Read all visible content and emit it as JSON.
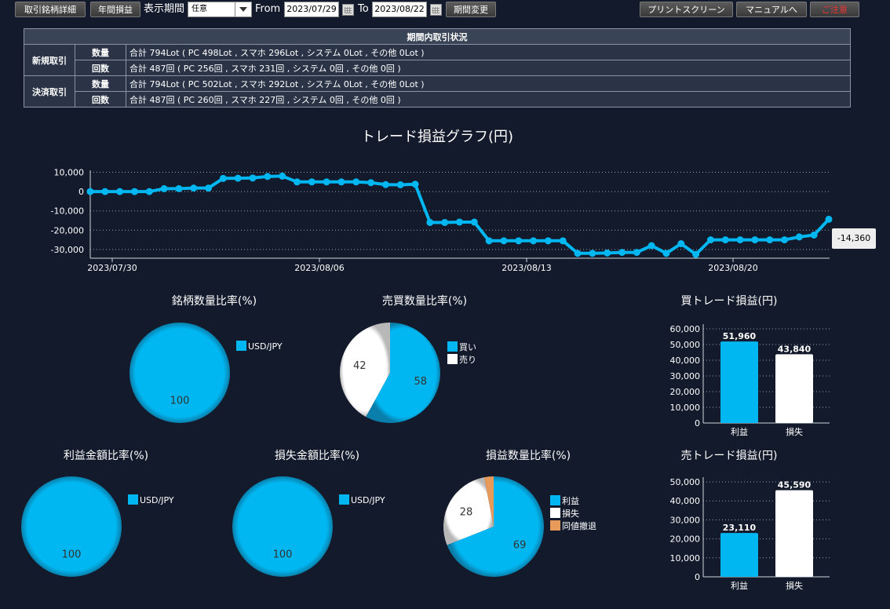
{
  "toolbar": {
    "detail_btn": "取引銘柄詳細",
    "annual_btn": "年間損益",
    "period_label": "表示期間",
    "period_value": "任意",
    "from_label": "From",
    "from_date": "2023/07/29",
    "to_label": "To",
    "to_date": "2023/08/22",
    "change_btn": "期間変更",
    "print_btn": "プリントスクリーン",
    "manual_btn": "マニュアルへ",
    "close_btn": "ご注意"
  },
  "summary": {
    "title": "期間内取引状況",
    "new_label": "新規取引",
    "settle_label": "決済取引",
    "qty_label": "数量",
    "count_label": "回数",
    "new_qty": "合計 794Lot ( PC 498Lot , スマホ 296Lot , システム 0Lot , その他 0Lot )",
    "new_count": "合計 487回 ( PC 256回 , スマホ 231回 , システム 0回 , その他 0回 )",
    "settle_qty": "合計 794Lot ( PC 502Lot , スマホ 292Lot , システム 0Lot , その他 0Lot )",
    "settle_count": "合計 487回 ( PC 260回 , スマホ 227回 , システム 0回 , その他 0回 )"
  },
  "tooltip": "-14,360",
  "colors": {
    "blue": "#00b7f1",
    "white": "#ffffff",
    "orange": "#e89a5a",
    "bg": "#121a2b"
  },
  "chart_data": [
    {
      "type": "line",
      "title": "トレード損益グラフ(円)",
      "yticks": [
        "10,000",
        "0",
        "-10,000",
        "-20,000",
        "-30,000"
      ],
      "ytick_values": [
        10000,
        0,
        -10000,
        -20000,
        -30000
      ],
      "xticks": [
        "2023/07/30",
        "2023/08/06",
        "2023/08/13",
        "2023/08/20"
      ],
      "ylim": [
        -34500,
        11000
      ],
      "grid": true,
      "values": [
        0,
        0,
        0,
        0,
        0,
        1500,
        1500,
        1800,
        1800,
        6800,
        6900,
        7000,
        7800,
        8000,
        5000,
        5000,
        5000,
        5000,
        5000,
        4600,
        3600,
        3500,
        3800,
        -16000,
        -16000,
        -15800,
        -15800,
        -25500,
        -25500,
        -25500,
        -25500,
        -25500,
        -25500,
        -32000,
        -32000,
        -31800,
        -31500,
        -31500,
        -28000,
        -32000,
        -27000,
        -32500,
        -25000,
        -25000,
        -25000,
        -25000,
        -25000,
        -25000,
        -23500,
        -22500,
        -14360
      ]
    },
    {
      "type": "pie",
      "title": "銘柄数量比率(%)",
      "slices": [
        {
          "label": "USD/JPY",
          "value": 100,
          "color": "#00b7f1"
        }
      ]
    },
    {
      "type": "pie",
      "title": "売買数量比率(%)",
      "slices": [
        {
          "label": "買い",
          "value": 58,
          "color": "#00b7f1"
        },
        {
          "label": "売り",
          "value": 42,
          "color": "#ffffff"
        }
      ]
    },
    {
      "type": "bar",
      "title": "買トレード損益(円)",
      "categories": [
        "利益",
        "損失"
      ],
      "values": [
        51960,
        43840
      ],
      "value_labels": [
        "51,960",
        "43,840"
      ],
      "yticks": [
        "60,000",
        "50,000",
        "40,000",
        "30,000",
        "20,000",
        "10,000",
        "0"
      ],
      "ytick_values": [
        60000,
        50000,
        40000,
        30000,
        20000,
        10000,
        0
      ],
      "ylim": [
        0,
        60000
      ],
      "colors": [
        "#00b7f1",
        "#ffffff"
      ]
    },
    {
      "type": "pie",
      "title": "利益金額比率(%)",
      "slices": [
        {
          "label": "USD/JPY",
          "value": 100,
          "color": "#00b7f1"
        }
      ]
    },
    {
      "type": "pie",
      "title": "損失金額比率(%)",
      "slices": [
        {
          "label": "USD/JPY",
          "value": 100,
          "color": "#00b7f1"
        }
      ]
    },
    {
      "type": "pie",
      "title": "損益数量比率(%)",
      "slices": [
        {
          "label": "利益",
          "value": 69,
          "color": "#00b7f1"
        },
        {
          "label": "損失",
          "value": 28,
          "color": "#ffffff"
        },
        {
          "label": "同値撤退",
          "value": 3,
          "color": "#e89a5a"
        }
      ]
    },
    {
      "type": "bar",
      "title": "売トレード損益(円)",
      "categories": [
        "利益",
        "損失"
      ],
      "values": [
        23110,
        45590
      ],
      "value_labels": [
        "23,110",
        "45,590"
      ],
      "yticks": [
        "50,000",
        "40,000",
        "30,000",
        "20,000",
        "10,000",
        "0"
      ],
      "ytick_values": [
        50000,
        40000,
        30000,
        20000,
        10000,
        0
      ],
      "ylim": [
        0,
        50000
      ],
      "colors": [
        "#00b7f1",
        "#ffffff"
      ]
    }
  ]
}
